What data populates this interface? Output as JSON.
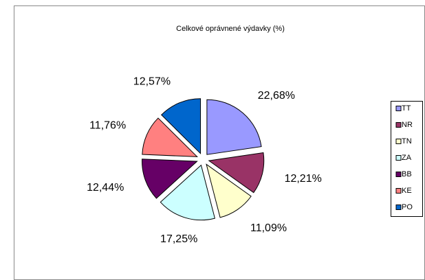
{
  "chart_data": {
    "type": "pie",
    "title": "Celkové oprávnené výdavky (%)",
    "categories": [
      "TT",
      "NR",
      "TN",
      "ZA",
      "BB",
      "KE",
      "PO"
    ],
    "values": [
      22.68,
      12.21,
      11.09,
      17.25,
      12.44,
      11.76,
      12.57
    ],
    "value_labels": [
      "22,68%",
      "12,21%",
      "11,09%",
      "17,25%",
      "12,44%",
      "11,76%",
      "12,57%"
    ],
    "colors": [
      "#9999ff",
      "#993366",
      "#ffffcc",
      "#ccffff",
      "#660066",
      "#ff8080",
      "#0066cc"
    ],
    "legend": "right"
  }
}
